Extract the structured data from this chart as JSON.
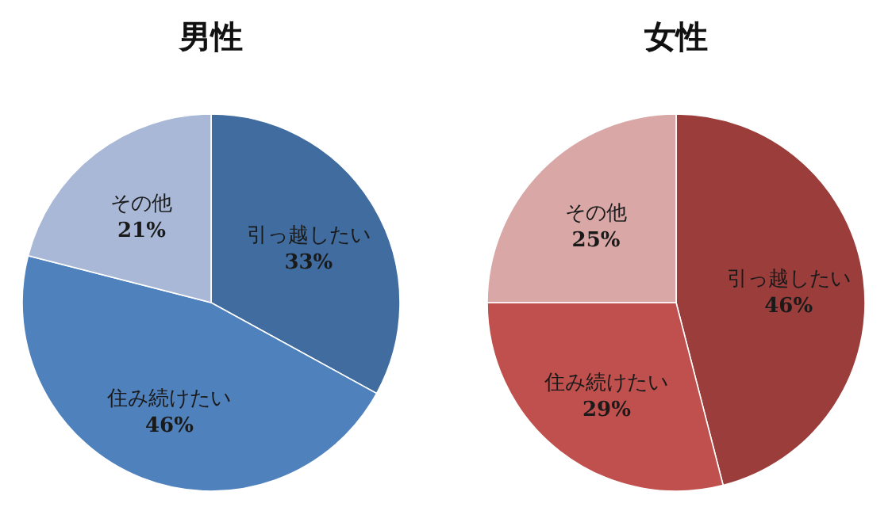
{
  "chart_data": [
    {
      "type": "pie",
      "title": "男性",
      "categories": [
        "引っ越したい",
        "住み続けたい",
        "その他"
      ],
      "values": [
        33,
        46,
        21
      ],
      "colors": [
        "#416c9f",
        "#4f81bd",
        "#a8b8d6"
      ],
      "value_labels": [
        "33%",
        "46%",
        "21%"
      ]
    },
    {
      "type": "pie",
      "title": "女性",
      "categories": [
        "引っ越したい",
        "住み続けたい",
        "その他"
      ],
      "values": [
        46,
        29,
        25
      ],
      "colors": [
        "#9a3d3b",
        "#c0504d",
        "#d8a7a6"
      ],
      "value_labels": [
        "46%",
        "29%",
        "25%"
      ]
    }
  ]
}
